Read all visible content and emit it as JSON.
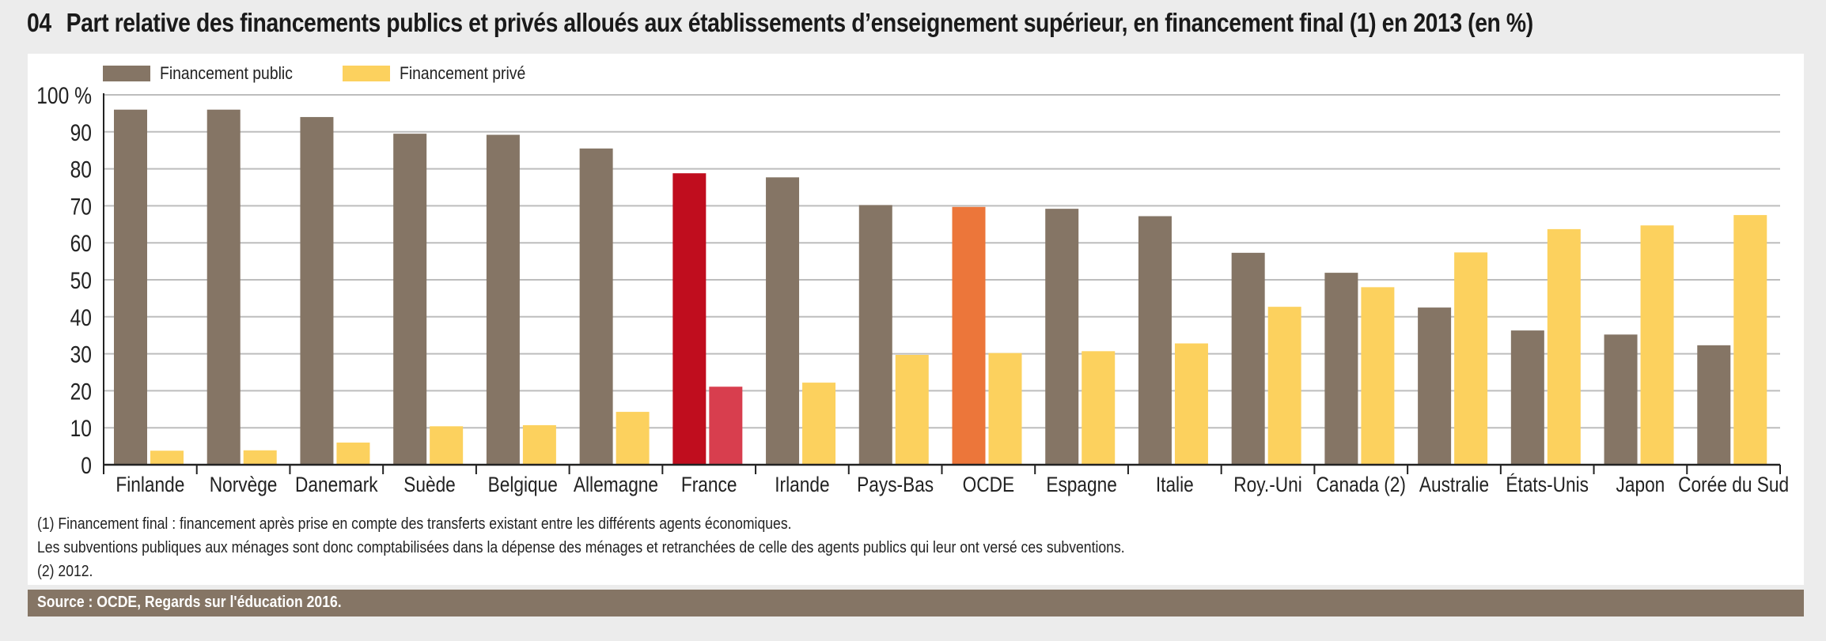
{
  "header": {
    "number": "04",
    "title": "Part relative des financements publics et privés alloués aux établissements d’enseignement supérieur, en financement final (1) en 2013 (en %)"
  },
  "legend": [
    {
      "label": "Financement public",
      "color": "#857565"
    },
    {
      "label": "Financement privé",
      "color": "#fcd15e"
    }
  ],
  "colors": {
    "public": "#857565",
    "private": "#fcd15e",
    "france_public": "#c00d1e",
    "france_private": "#d83e4e",
    "ocde_public": "#ec763a",
    "gridline": "#bdbdbd",
    "axis": "#222222"
  },
  "chart_data": {
    "type": "bar",
    "title": "Part relative des financements publics et privés alloués aux établissements d’enseignement supérieur, en financement final (1) en 2013 (en %)",
    "xlabel": "",
    "ylabel": "%",
    "ylim": [
      0,
      100
    ],
    "yticks": [
      0,
      10,
      20,
      30,
      40,
      50,
      60,
      70,
      80,
      90,
      100
    ],
    "ytick_labels": [
      "0",
      "10",
      "20",
      "30",
      "40",
      "50",
      "60",
      "70",
      "80",
      "90",
      "100 %"
    ],
    "grid": true,
    "legend_position": "top-left",
    "categories": [
      "Finlande",
      "Norvège",
      "Danemark",
      "Suède",
      "Belgique",
      "Allemagne",
      "France",
      "Irlande",
      "Pays-Bas",
      "OCDE",
      "Espagne",
      "Italie",
      "Roy.-Uni",
      "Canada (2)",
      "Australie",
      "États-Unis",
      "Japon",
      "Corée du Sud"
    ],
    "highlight": {
      "France": "france",
      "OCDE": "ocde"
    },
    "series": [
      {
        "name": "Financement public",
        "values": [
          96.0,
          96.0,
          94.0,
          89.5,
          89.2,
          85.5,
          78.8,
          77.7,
          70.2,
          69.7,
          69.2,
          67.2,
          57.3,
          51.9,
          42.5,
          36.3,
          35.2,
          32.3
        ]
      },
      {
        "name": "Financement privé",
        "values": [
          3.8,
          3.9,
          6.0,
          10.4,
          10.7,
          14.3,
          21.1,
          22.2,
          29.7,
          30.2,
          30.7,
          32.8,
          42.7,
          48.0,
          57.4,
          63.7,
          64.7,
          67.5
        ]
      }
    ]
  },
  "notes": [
    "(1) Financement final : financement après prise en compte des transferts existant entre les différents agents économiques.",
    "Les subventions publiques aux ménages sont donc comptabilisées dans la dépense des ménages et retranchées de celle des agents publics qui leur ont versé ces subventions.",
    "(2) 2012."
  ],
  "source": "Source :  OCDE, Regards sur l'éducation 2016."
}
